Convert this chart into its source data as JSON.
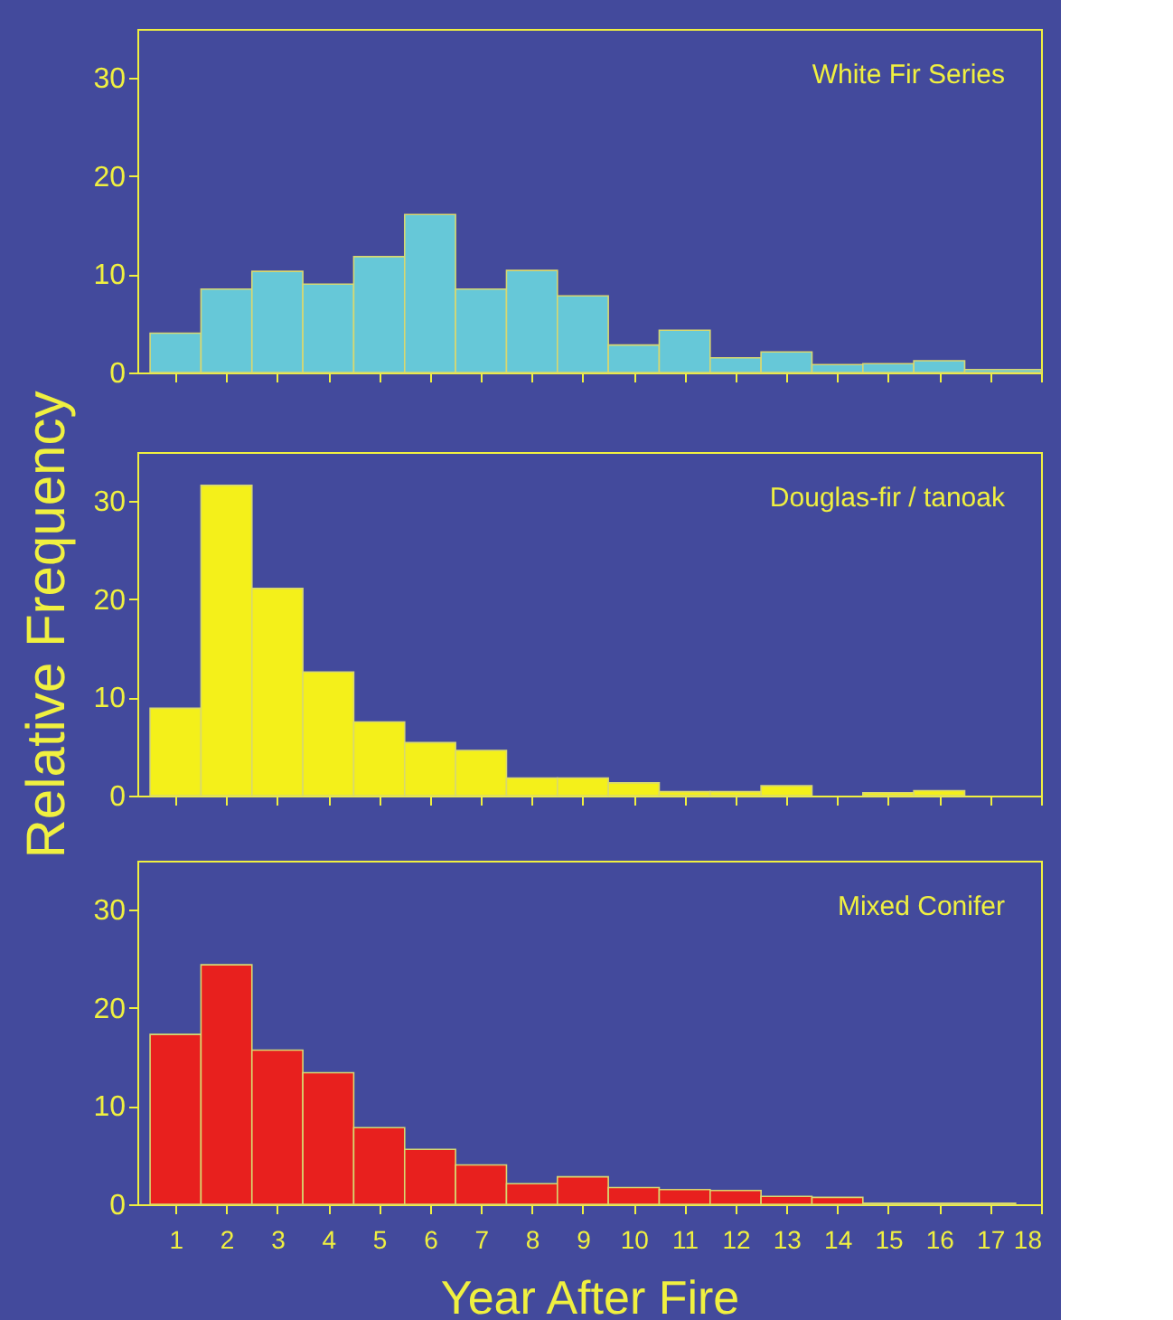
{
  "chart_data": [
    {
      "type": "histogram",
      "bins": [
        0.5,
        1.5,
        2.5,
        3.5,
        4.5,
        5.5,
        6.5,
        7.5,
        8.5,
        9.5,
        10.5,
        11.5,
        12.5,
        13.5,
        14.5,
        15.5,
        16.5,
        18
      ],
      "values": [
        4.0,
        8.5,
        10.3,
        9.0,
        11.8,
        16.1,
        8.5,
        10.4,
        7.8,
        2.8,
        4.3,
        1.5,
        2.1,
        0.8,
        0.9,
        1.2,
        0.3
      ],
      "color": "#66c8d8",
      "xlim": [
        0.25,
        18
      ],
      "xticks": [
        1,
        2,
        3,
        4,
        5,
        6,
        7,
        8,
        9,
        10,
        11,
        12,
        13,
        14,
        15,
        16,
        17,
        18
      ],
      "ylim": [
        0,
        35
      ],
      "yticks": [
        0,
        10,
        20,
        30
      ],
      "tick_labels": "y",
      "annotations": [
        "White Fir Series"
      ]
    },
    {
      "type": "histogram",
      "bins": [
        0.5,
        1.5,
        2.5,
        3.5,
        4.5,
        5.5,
        6.5,
        7.5,
        8.5,
        9.5,
        10.5,
        11.5,
        12.5,
        13.5,
        14.5,
        15.5,
        16.5
      ],
      "values": [
        8.9,
        31.6,
        21.1,
        12.6,
        7.5,
        5.4,
        4.6,
        1.8,
        1.8,
        1.3,
        0.4,
        0.4,
        1.0,
        null,
        0.3,
        0.5
      ],
      "color": "#f4f01a",
      "xlim": [
        0.25,
        18
      ],
      "xticks": [
        1,
        2,
        3,
        4,
        5,
        6,
        7,
        8,
        9,
        10,
        11,
        12,
        13,
        14,
        15,
        16,
        17,
        18
      ],
      "ylim": [
        0,
        35
      ],
      "yticks": [
        0,
        10,
        20,
        30
      ],
      "tick_labels": "y",
      "ylabel": "Relative Frequency",
      "annotations": [
        "Douglas-fir / tanoak"
      ]
    },
    {
      "type": "histogram",
      "bins": [
        0.5,
        1.5,
        2.5,
        3.5,
        4.5,
        5.5,
        6.5,
        7.5,
        8.5,
        9.5,
        10.5,
        11.5,
        12.5,
        13.5,
        14.5,
        15.5,
        16.5,
        17.5
      ],
      "values": [
        17.3,
        24.4,
        15.7,
        13.4,
        7.8,
        5.6,
        4.0,
        2.1,
        2.8,
        1.7,
        1.5,
        1.4,
        0.8,
        0.7,
        0.1,
        0.1,
        0.1
      ],
      "color": "#e8201e",
      "xlim": [
        0.25,
        18
      ],
      "xticks": [
        1,
        2,
        3,
        4,
        5,
        6,
        7,
        8,
        9,
        10,
        11,
        12,
        13,
        14,
        15,
        16,
        17,
        18
      ],
      "ylim": [
        0,
        35
      ],
      "yticks": [
        0,
        10,
        20,
        30
      ],
      "xlabel": "Year After Fire",
      "annotations": [
        "Mixed Conifer"
      ]
    }
  ]
}
